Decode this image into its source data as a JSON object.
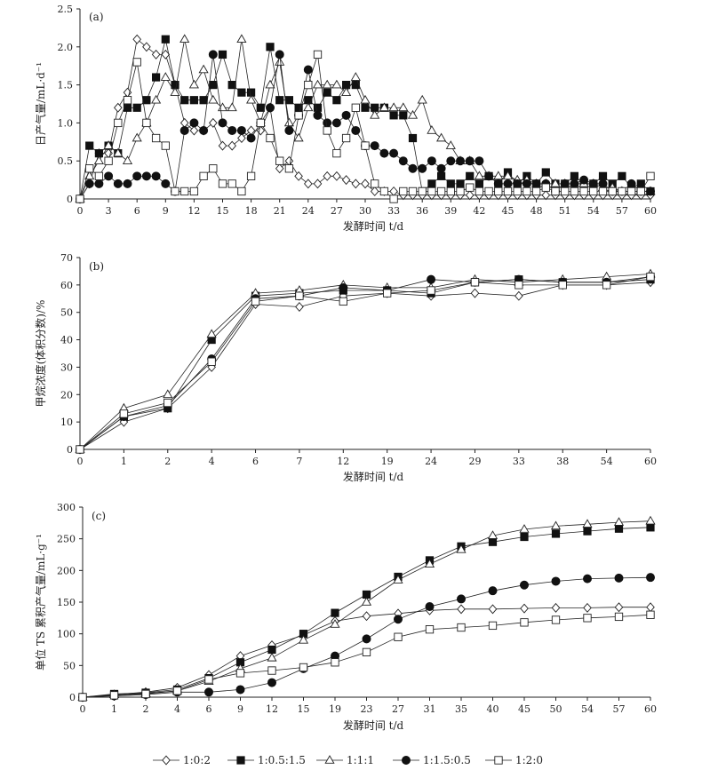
{
  "legend": [
    {
      "name": "1:0:2",
      "marker": "diamond"
    },
    {
      "name": "1:0.5:1.5",
      "marker": "square-filled"
    },
    {
      "name": "1:1:1",
      "marker": "triangle"
    },
    {
      "name": "1:1.5:0.5",
      "marker": "circle-filled"
    },
    {
      "name": "1:2:0",
      "marker": "square-open"
    }
  ],
  "chart_data": [
    {
      "type": "line",
      "panel_tag": "(a)",
      "xlabel": "发酵时间 t/d",
      "ylabel": "日产气量/mL·d⁻¹",
      "xlim": [
        0,
        60
      ],
      "ylim": [
        0,
        2.5
      ],
      "x_ticks": [
        0,
        3,
        6,
        9,
        12,
        15,
        18,
        21,
        24,
        27,
        30,
        33,
        36,
        39,
        42,
        45,
        48,
        51,
        54,
        57,
        60
      ],
      "y_ticks": [
        0,
        0.5,
        1.0,
        1.5,
        2.0,
        2.5
      ],
      "y_tick_labels": [
        "0",
        "0.5",
        "1.0",
        "1.5",
        "2.0",
        "2.5"
      ],
      "grid": false,
      "x": [
        0,
        1,
        2,
        3,
        4,
        5,
        6,
        7,
        8,
        9,
        10,
        11,
        12,
        13,
        14,
        15,
        16,
        17,
        18,
        19,
        20,
        21,
        22,
        23,
        24,
        25,
        26,
        27,
        28,
        29,
        30,
        31,
        32,
        33,
        34,
        35,
        36,
        37,
        38,
        39,
        40,
        41,
        42,
        43,
        44,
        45,
        46,
        47,
        48,
        49,
        50,
        51,
        52,
        53,
        54,
        55,
        56,
        57,
        58,
        59,
        60
      ],
      "series": [
        {
          "name": "1:0:2",
          "values": [
            0,
            0.2,
            0.6,
            0.6,
            1.2,
            1.4,
            2.1,
            2.0,
            1.9,
            1.9,
            1.5,
            1.0,
            0.9,
            0.9,
            1.0,
            0.7,
            0.7,
            0.8,
            0.9,
            0.9,
            1.2,
            0.4,
            0.5,
            0.3,
            0.2,
            0.2,
            0.3,
            0.3,
            0.25,
            0.2,
            0.2,
            0.1,
            0.1,
            0.1,
            0.05,
            0.05,
            0.05,
            0.05,
            0.05,
            0.05,
            0.05,
            0.05,
            0.05,
            0.05,
            0.05,
            0.05,
            0.05,
            0.05,
            0.05,
            0.05,
            0.05,
            0.05,
            0.05,
            0.05,
            0.05,
            0.05,
            0.05,
            0.05,
            0.05,
            0.05,
            0.05
          ]
        },
        {
          "name": "1:0.5:1.5",
          "values": [
            0,
            0.7,
            0.6,
            0.7,
            0.6,
            1.2,
            1.2,
            1.3,
            1.6,
            2.1,
            1.5,
            1.3,
            1.3,
            1.3,
            1.5,
            1.9,
            1.5,
            1.4,
            1.4,
            1.2,
            2.0,
            1.3,
            1.3,
            1.2,
            1.3,
            1.2,
            1.4,
            1.3,
            1.5,
            1.5,
            1.2,
            1.2,
            1.2,
            1.1,
            1.1,
            0.8,
            0.1,
            0.2,
            0.3,
            0.2,
            0.2,
            0.3,
            0.2,
            0.3,
            0.2,
            0.35,
            0.2,
            0.3,
            0.2,
            0.35,
            0.2,
            0.2,
            0.3,
            0.2,
            0.2,
            0.3,
            0.2,
            0.3,
            0.15,
            0.2,
            0.1
          ]
        },
        {
          "name": "1:1:1",
          "values": [
            0,
            0.3,
            0.5,
            0.7,
            0.6,
            0.5,
            0.8,
            1.0,
            1.3,
            1.6,
            1.4,
            2.1,
            1.5,
            1.7,
            1.3,
            1.2,
            1.2,
            2.1,
            1.3,
            1.0,
            1.5,
            1.8,
            1.0,
            0.8,
            1.2,
            1.5,
            1.5,
            1.5,
            1.4,
            1.6,
            1.3,
            1.1,
            1.2,
            1.2,
            1.2,
            1.1,
            1.3,
            0.9,
            0.8,
            0.7,
            0.5,
            0.5,
            0.3,
            0.3,
            0.3,
            0.3,
            0.25,
            0.25,
            0.2,
            0.2,
            0.2,
            0.2,
            0.2,
            0.2,
            0.2,
            0.15,
            0.15,
            0.1,
            0.1,
            0.1,
            0.1
          ]
        },
        {
          "name": "1:1.5:0.5",
          "values": [
            0,
            0.2,
            0.2,
            0.3,
            0.2,
            0.2,
            0.3,
            0.3,
            0.3,
            0.2,
            0.1,
            0.9,
            1.0,
            0.9,
            1.9,
            1.0,
            0.9,
            0.9,
            0.8,
            1.0,
            1.2,
            1.9,
            0.9,
            1.1,
            1.7,
            1.1,
            1.0,
            1.0,
            1.1,
            0.9,
            0.7,
            0.7,
            0.6,
            0.6,
            0.5,
            0.4,
            0.4,
            0.5,
            0.4,
            0.5,
            0.5,
            0.5,
            0.5,
            0.3,
            0.2,
            0.2,
            0.2,
            0.2,
            0.2,
            0.2,
            0.1,
            0.2,
            0.2,
            0.25,
            0.2,
            0.2,
            0.1,
            0.1,
            0.2,
            0.1,
            0.1
          ]
        },
        {
          "name": "1:2:0",
          "values": [
            0,
            0.4,
            0.3,
            0.5,
            1.0,
            1.3,
            1.8,
            1.0,
            0.8,
            0.7,
            0.1,
            0.1,
            0.1,
            0.3,
            0.4,
            0.2,
            0.2,
            0.1,
            0.3,
            1.0,
            0.8,
            0.5,
            0.4,
            1.1,
            1.5,
            1.9,
            0.9,
            0.6,
            0.8,
            1.2,
            0.7,
            0.2,
            0.1,
            0.0,
            0.1,
            0.1,
            0.1,
            0.1,
            0.1,
            0.1,
            0.1,
            0.15,
            0.1,
            0.1,
            0.1,
            0.1,
            0.1,
            0.1,
            0.1,
            0.15,
            0.1,
            0.1,
            0.1,
            0.1,
            0.1,
            0.1,
            0.1,
            0.1,
            0.1,
            0.1,
            0.3
          ]
        }
      ]
    },
    {
      "type": "line",
      "panel_tag": "(b)",
      "xlabel": "发酵时间 t/d",
      "ylabel": "甲烷浓度(体积分数)/%",
      "categories": [
        "0",
        "1",
        "2",
        "4",
        "6",
        "7",
        "12",
        "19",
        "24",
        "29",
        "33",
        "38",
        "54",
        "60"
      ],
      "ylim": [
        0,
        70
      ],
      "y_ticks": [
        0,
        10,
        20,
        30,
        40,
        50,
        60,
        70
      ],
      "grid": false,
      "series": [
        {
          "name": "1:0:2",
          "values": [
            0,
            10,
            15,
            30,
            53,
            52,
            56,
            57,
            56,
            57,
            56,
            60,
            60,
            61
          ]
        },
        {
          "name": "1:0.5:1.5",
          "values": [
            0,
            12,
            15,
            40,
            56,
            57,
            58,
            58,
            57,
            61,
            62,
            61,
            61,
            62
          ]
        },
        {
          "name": "1:1:1",
          "values": [
            0,
            15,
            20,
            42,
            57,
            58,
            60,
            59,
            59,
            62,
            61,
            62,
            63,
            64
          ]
        },
        {
          "name": "1:1.5:0.5",
          "values": [
            0,
            12,
            16,
            33,
            55,
            56,
            59,
            58,
            62,
            61,
            62,
            61,
            61,
            63
          ]
        },
        {
          "name": "1:2:0",
          "values": [
            0,
            13,
            17,
            32,
            54,
            56,
            54,
            57,
            58,
            61,
            60,
            60,
            60,
            63
          ]
        }
      ]
    },
    {
      "type": "line",
      "panel_tag": "(c)",
      "xlabel": "发酵时间 t/d",
      "ylabel": "单位 TS 累积产气量/mL·g⁻¹",
      "categories": [
        "0",
        "1",
        "2",
        "4",
        "6",
        "9",
        "12",
        "15",
        "19",
        "23",
        "27",
        "31",
        "35",
        "40",
        "45",
        "50",
        "54",
        "57",
        "60"
      ],
      "ylim": [
        0,
        300
      ],
      "y_ticks": [
        0,
        50,
        100,
        150,
        200,
        250,
        300
      ],
      "grid": false,
      "series": [
        {
          "name": "1:0:2",
          "values": [
            0,
            4,
            8,
            15,
            35,
            65,
            82,
            98,
            120,
            128,
            132,
            137,
            139,
            139,
            140,
            141,
            141,
            142,
            142
          ]
        },
        {
          "name": "1:0.5:1.5",
          "values": [
            0,
            5,
            7,
            12,
            30,
            55,
            75,
            100,
            133,
            162,
            190,
            216,
            238,
            245,
            253,
            258,
            262,
            266,
            268
          ]
        },
        {
          "name": "1:1:1",
          "values": [
            0,
            4,
            6,
            10,
            25,
            45,
            62,
            90,
            115,
            150,
            185,
            210,
            233,
            255,
            265,
            270,
            273,
            276,
            278
          ]
        },
        {
          "name": "1:1.5:0.5",
          "values": [
            0,
            2,
            4,
            8,
            8,
            12,
            23,
            45,
            65,
            92,
            123,
            143,
            155,
            168,
            177,
            183,
            187,
            188,
            189
          ]
        },
        {
          "name": "1:2:0",
          "values": [
            0,
            3,
            5,
            10,
            28,
            38,
            42,
            47,
            55,
            71,
            95,
            107,
            110,
            113,
            118,
            122,
            125,
            127,
            130
          ]
        }
      ]
    }
  ]
}
